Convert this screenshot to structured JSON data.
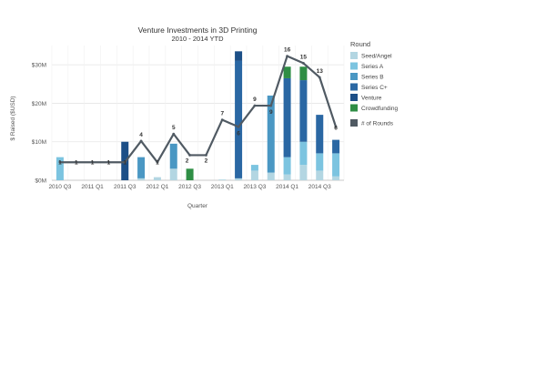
{
  "chart_data": {
    "type": "bar",
    "title": "Venture Investments in 3D Printing",
    "subtitle": "2010 - 2014 YTD",
    "xlabel": "Quarter",
    "ylabel": "$ Raised ($USD)",
    "ylim": [
      0,
      35
    ],
    "y_ticks": [
      0,
      10,
      20,
      30
    ],
    "y_tick_labels": [
      "$0M",
      "$10M",
      "$20M",
      "$30M"
    ],
    "grid": true,
    "legend_position": "right",
    "categories": [
      "2010 Q3",
      "2010 Q4",
      "2011 Q1",
      "2011 Q2",
      "2011 Q3",
      "2011 Q4",
      "2012 Q1",
      "2012 Q2",
      "2012 Q3",
      "2012 Q4",
      "2013 Q1",
      "2013 Q2",
      "2013 Q3",
      "2013 Q4",
      "2014 Q1",
      "2014 Q2",
      "2014 Q3",
      "2014 Q4"
    ],
    "x_tick_labels": [
      "2010 Q3",
      "",
      "2011 Q1",
      "",
      "2011 Q3",
      "",
      "2012 Q1",
      "",
      "2012 Q3",
      "",
      "2013 Q1",
      "",
      "2013 Q3",
      "",
      "2014 Q1",
      "",
      "2014 Q3",
      ""
    ],
    "legend_title": "Round",
    "series": [
      {
        "name": "Seed/Angel",
        "color": "#b3d6e2",
        "values": [
          0,
          0,
          0,
          0,
          0,
          0.5,
          0.8,
          3,
          0,
          0,
          0.2,
          0.5,
          2.5,
          2,
          1.5,
          4,
          2.5,
          1
        ]
      },
      {
        "name": "Series A",
        "color": "#7cc4e0",
        "values": [
          6,
          0,
          0,
          0,
          0,
          0,
          0,
          0,
          0,
          0,
          0,
          0,
          1.5,
          0,
          4.5,
          6,
          4.5,
          6
        ]
      },
      {
        "name": "Series B",
        "color": "#4a97c3",
        "values": [
          0,
          0,
          0,
          0,
          0,
          5.5,
          0,
          6.5,
          0,
          0,
          0,
          0,
          0,
          20,
          0,
          0,
          0,
          0
        ]
      },
      {
        "name": "Series C+",
        "color": "#2a67a3",
        "values": [
          0,
          0,
          0,
          0,
          0,
          0,
          0,
          0,
          0,
          0,
          0,
          30.5,
          0,
          0,
          20.5,
          16,
          10,
          3.5
        ]
      },
      {
        "name": "Venture",
        "color": "#1c4f87",
        "values": [
          0,
          0,
          0,
          0,
          10,
          0,
          0,
          0,
          0,
          0,
          0,
          2.5,
          0,
          0,
          0,
          0,
          0,
          0
        ]
      },
      {
        "name": "Crowdfunding",
        "color": "#2f8e45",
        "values": [
          0,
          0,
          0,
          0,
          0,
          0,
          0,
          0,
          3,
          0,
          0,
          0,
          0,
          0,
          3,
          3.5,
          0,
          0
        ]
      }
    ],
    "line_series": {
      "name": "# of Rounds",
      "color": "#505a63",
      "values": [
        1,
        1,
        1,
        1,
        1,
        4,
        1,
        5,
        2,
        2,
        7,
        6,
        9,
        9,
        16,
        15,
        13,
        6
      ]
    }
  }
}
